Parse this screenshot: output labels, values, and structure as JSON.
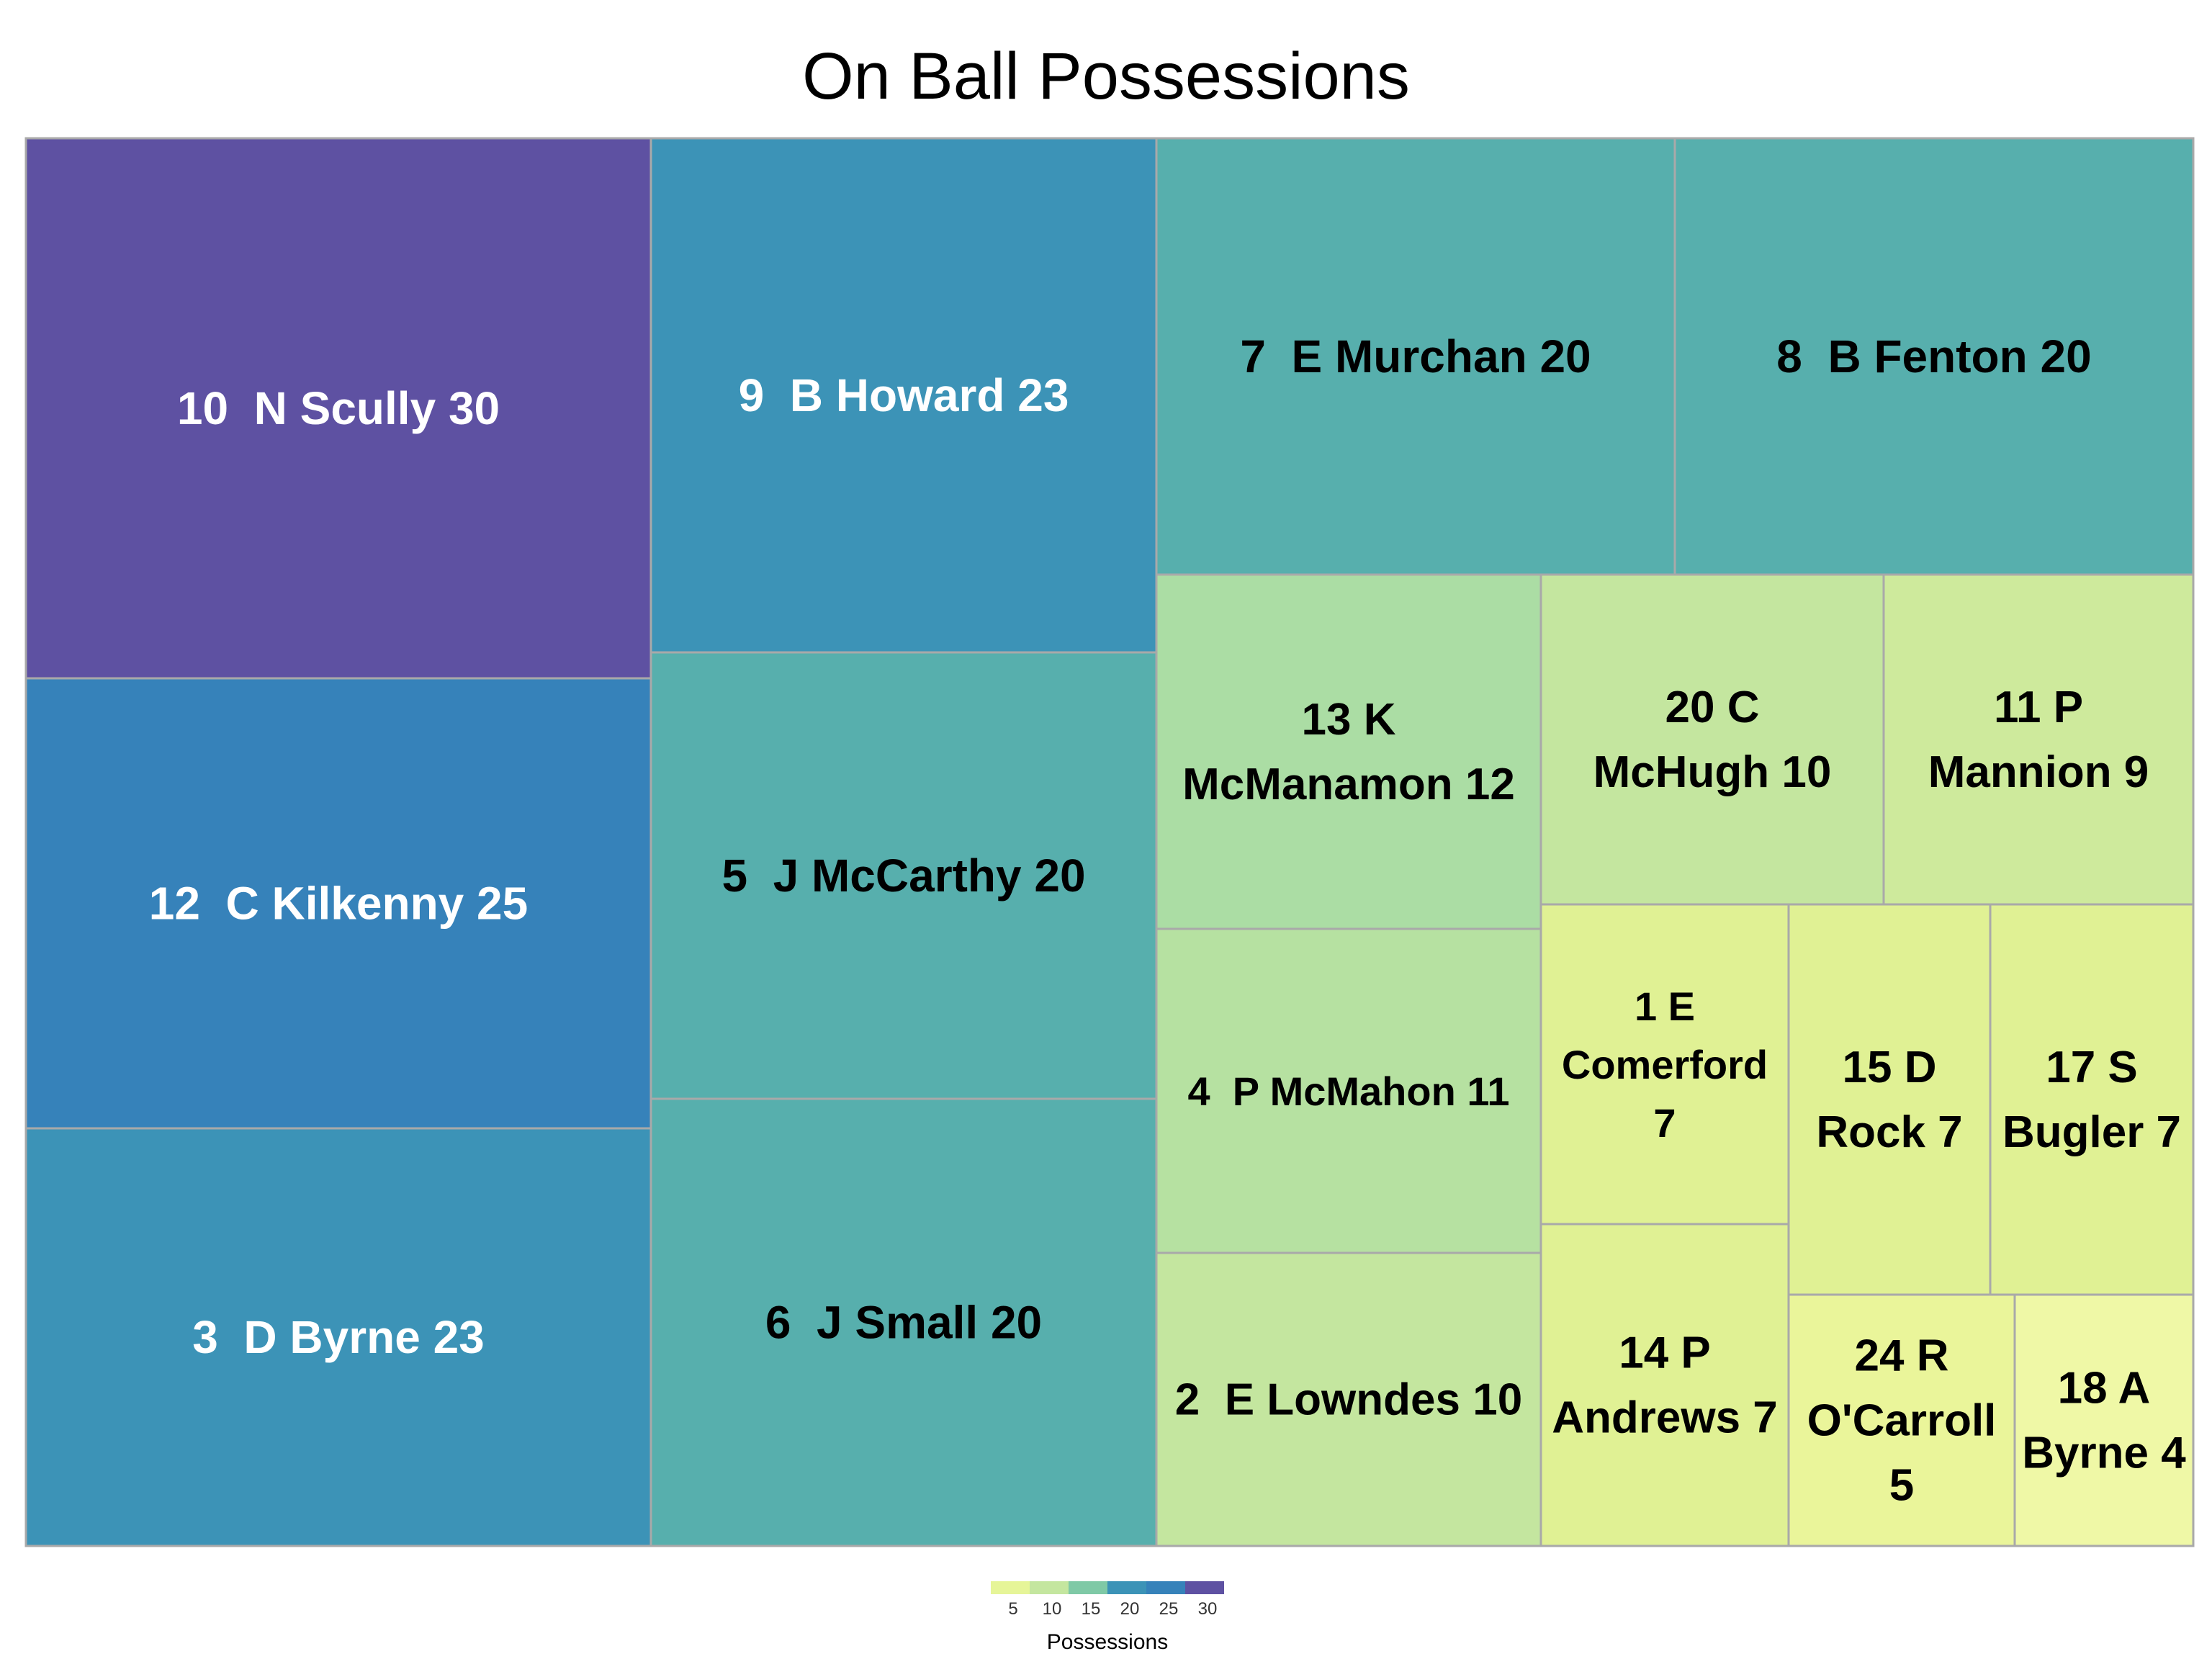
{
  "chart_data": {
    "type": "treemap",
    "title": "On Ball Possessions",
    "items": [
      {
        "label": "10  N Scully 30",
        "value": 30,
        "color": "#5E51A2",
        "text_color": "#ffffff"
      },
      {
        "label": "12  C Kilkenny 25",
        "value": 25,
        "color": "#3682BA",
        "text_color": "#ffffff"
      },
      {
        "label": "3  D Byrne 23",
        "value": 23,
        "color": "#3C93B7",
        "text_color": "#ffffff"
      },
      {
        "label": "9  B Howard 23",
        "value": 23,
        "color": "#3C93B7",
        "text_color": "#ffffff"
      },
      {
        "label": "5  J McCarthy 20",
        "value": 20,
        "color": "#57AFAD",
        "text_color": "#000000"
      },
      {
        "label": "6  J Small 20",
        "value": 20,
        "color": "#57AFAD",
        "text_color": "#000000"
      },
      {
        "label": "7  E Murchan 20",
        "value": 20,
        "color": "#57AFAD",
        "text_color": "#000000"
      },
      {
        "label": "8  B Fenton 20",
        "value": 20,
        "color": "#57AFAD",
        "text_color": "#000000"
      },
      {
        "label": "13 K McManamon 12",
        "value": 12,
        "color": "#ABDDA4",
        "text_color": "#000000"
      },
      {
        "label": "4  P McMahon 11",
        "value": 11,
        "color": "#B6E1A1",
        "text_color": "#000000"
      },
      {
        "label": "2  E Lowndes 10",
        "value": 10,
        "color": "#C4E69F",
        "text_color": "#000000"
      },
      {
        "label": "20 C McHugh 10",
        "value": 10,
        "color": "#C4E69F",
        "text_color": "#000000"
      },
      {
        "label": "11 P Mannion 9",
        "value": 9,
        "color": "#CEEA9C",
        "text_color": "#000000"
      },
      {
        "label": "1 E Comerford 7",
        "value": 7,
        "color": "#E0F194",
        "text_color": "#000000"
      },
      {
        "label": "15 D Rock 7",
        "value": 7,
        "color": "#E0F194",
        "text_color": "#000000"
      },
      {
        "label": "17 S Bugler 7",
        "value": 7,
        "color": "#E0F194",
        "text_color": "#000000"
      },
      {
        "label": "14 P Andrews 7",
        "value": 7,
        "color": "#E0F194",
        "text_color": "#000000"
      },
      {
        "label": "24 R O'Carroll 5",
        "value": 5,
        "color": "#EAF59A",
        "text_color": "#000000"
      },
      {
        "label": "18 A Byrne 4",
        "value": 4,
        "color": "#EFF8A6",
        "text_color": "#000000"
      }
    ],
    "legend": {
      "title": "Possessions",
      "ticks": [
        "5",
        "10",
        "15",
        "20",
        "25",
        "30"
      ],
      "colors": [
        "#E6F598",
        "#C4E69F",
        "#7FC9A6",
        "#3C93B7",
        "#3682BA",
        "#5E51A2"
      ],
      "placement": "bottom-center"
    },
    "border_color": "#A9A9A9"
  }
}
